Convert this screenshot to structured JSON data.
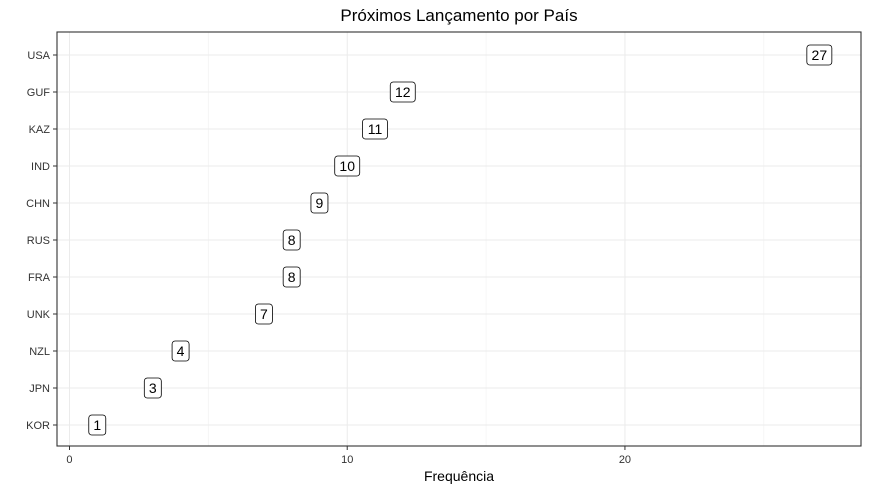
{
  "chart_data": {
    "type": "scatter",
    "title": "Próximos Lançamento por País",
    "xlabel": "Frequência",
    "ylabel": "",
    "xlim": [
      -0.45,
      28.5
    ],
    "xticks": [
      0,
      10,
      20
    ],
    "grid": true,
    "categories": [
      "KOR",
      "JPN",
      "NZL",
      "UNK",
      "FRA",
      "RUS",
      "CHN",
      "IND",
      "KAZ",
      "GUF",
      "USA"
    ],
    "values": [
      1,
      3,
      4,
      7,
      8,
      8,
      9,
      10,
      11,
      12,
      27
    ]
  }
}
